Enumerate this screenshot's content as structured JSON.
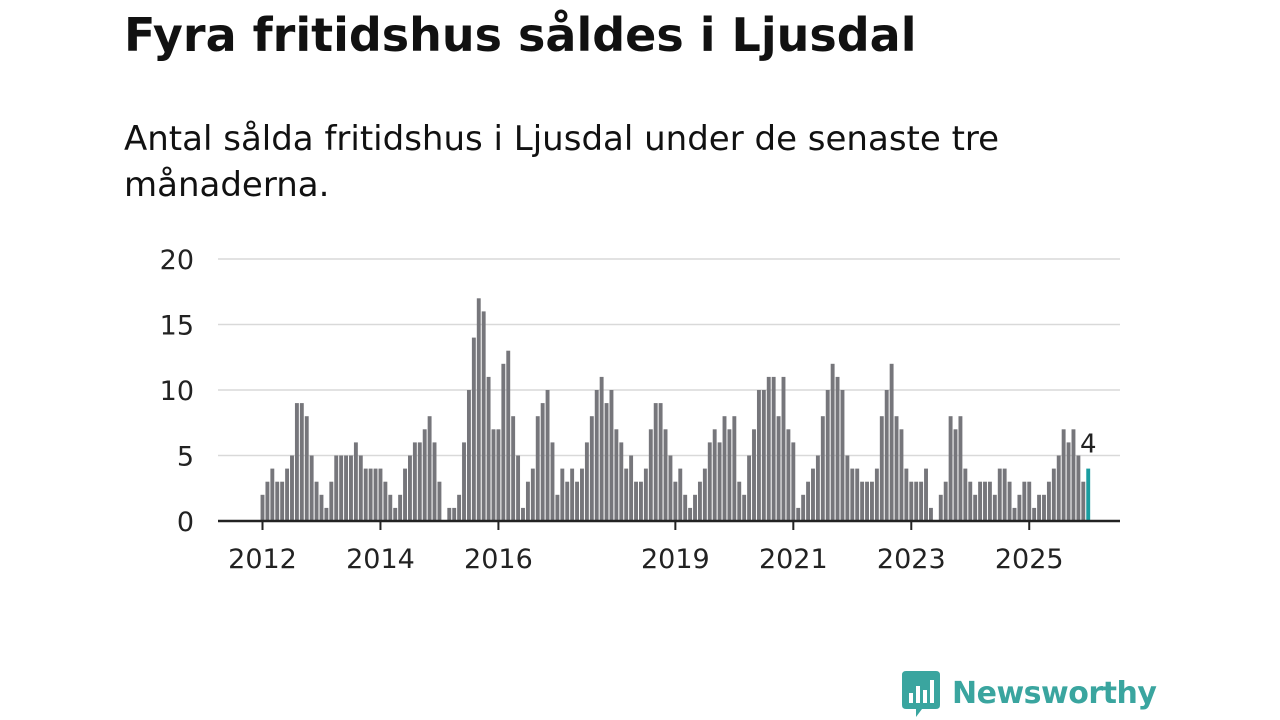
{
  "title": "Fyra fritidshus såldes i Ljusdal",
  "subtitle": "Antal sålda fritidshus i Ljusdal under de senaste tre månaderna.",
  "brand": {
    "name": "Newsworthy",
    "color": "#3aa59f",
    "icon": "newsworthy-chat-bar-icon"
  },
  "colors": {
    "bar": "#76767b",
    "highlight": "#1a9da0",
    "grid": "#d9d9d9",
    "axis": "#222222"
  },
  "chart_data": {
    "type": "bar",
    "title": "Fyra fritidshus såldes i Ljusdal",
    "xlabel": "",
    "ylabel": "",
    "ylim": [
      0,
      20
    ],
    "yticks": [
      0,
      5,
      10,
      15,
      20
    ],
    "grid": true,
    "first_period": "2012-01",
    "xticks": [
      {
        "label": "2012",
        "index": 0
      },
      {
        "label": "2014",
        "index": 24
      },
      {
        "label": "2016",
        "index": 48
      },
      {
        "label": "2019",
        "index": 84
      },
      {
        "label": "2021",
        "index": 108
      },
      {
        "label": "2023",
        "index": 132
      },
      {
        "label": "2025",
        "index": 156
      }
    ],
    "values": [
      2,
      3,
      4,
      3,
      3,
      4,
      5,
      9,
      9,
      8,
      5,
      3,
      2,
      1,
      3,
      5,
      5,
      5,
      5,
      6,
      5,
      4,
      4,
      4,
      4,
      3,
      2,
      1,
      2,
      4,
      5,
      6,
      6,
      7,
      8,
      6,
      3,
      0,
      1,
      1,
      2,
      6,
      10,
      14,
      17,
      16,
      11,
      7,
      7,
      12,
      13,
      8,
      5,
      1,
      3,
      4,
      8,
      9,
      10,
      6,
      2,
      4,
      3,
      4,
      3,
      4,
      6,
      8,
      10,
      11,
      9,
      10,
      7,
      6,
      4,
      5,
      3,
      3,
      4,
      7,
      9,
      9,
      7,
      5,
      3,
      4,
      2,
      1,
      2,
      3,
      4,
      6,
      7,
      6,
      8,
      7,
      8,
      3,
      2,
      5,
      7,
      10,
      10,
      11,
      11,
      8,
      11,
      7,
      6,
      1,
      2,
      3,
      4,
      5,
      8,
      10,
      12,
      11,
      10,
      5,
      4,
      4,
      3,
      3,
      3,
      4,
      8,
      10,
      12,
      8,
      7,
      4,
      3,
      3,
      3,
      4,
      1,
      0,
      2,
      3,
      8,
      7,
      8,
      4,
      3,
      2,
      3,
      3,
      3,
      2,
      4,
      4,
      3,
      1,
      2,
      3,
      3,
      1,
      2,
      2,
      3,
      4,
      5,
      7,
      6,
      7,
      5,
      3,
      4
    ],
    "highlight_index": 168,
    "highlight_label": "4"
  }
}
